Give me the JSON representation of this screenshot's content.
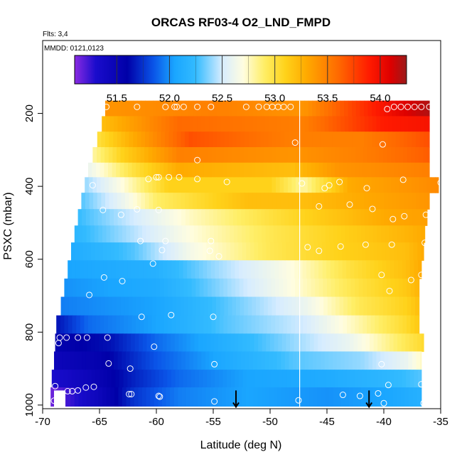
{
  "chart_data": {
    "type": "heatmap",
    "title": "ORCAS RF03-4 O2_LND_FMPD",
    "annotations": {
      "flights": "Flts: 3,4",
      "dates": "MMDD: 0121,0123"
    },
    "xlabel": "Latitude (deg N)",
    "ylabel": "PSXC (mbar)",
    "xlim": [
      -70,
      -35
    ],
    "ylim": [
      1010,
      0
    ],
    "x_ticks": [
      -70,
      -65,
      -60,
      -55,
      -50,
      -45,
      -40,
      -35
    ],
    "x_tick_labels": [
      "-70",
      "-65",
      "-60",
      "-55",
      "-50",
      "-45",
      "-40",
      "-35"
    ],
    "y_ticks": [
      200,
      400,
      600,
      800,
      1000
    ],
    "y_tick_labels": [
      "200",
      "400",
      "600",
      "800",
      "1000"
    ],
    "colorbar": {
      "range": [
        51.1,
        54.25
      ],
      "ticks": [
        51.5,
        52.0,
        52.5,
        53.0,
        53.5,
        54.0
      ],
      "tick_labels": [
        "51.5",
        "52.0",
        "52.5",
        "53.0",
        "53.5",
        "54.0"
      ],
      "stops": [
        {
          "v": 51.1,
          "c": "#8a2be2"
        },
        {
          "v": 51.3,
          "c": "#1a0ccc"
        },
        {
          "v": 51.6,
          "c": "#0000a8"
        },
        {
          "v": 51.85,
          "c": "#0a55e8"
        },
        {
          "v": 52.05,
          "c": "#1aa6ff"
        },
        {
          "v": 52.25,
          "c": "#33bbff"
        },
        {
          "v": 52.5,
          "c": "#d6ecff"
        },
        {
          "v": 52.7,
          "c": "#fffde0"
        },
        {
          "v": 52.9,
          "c": "#ffee66"
        },
        {
          "v": 53.1,
          "c": "#ffd21a"
        },
        {
          "v": 53.3,
          "c": "#ffaa00"
        },
        {
          "v": 53.6,
          "c": "#ff6a00"
        },
        {
          "v": 53.9,
          "c": "#ff1a00"
        },
        {
          "v": 54.1,
          "c": "#dd0000"
        },
        {
          "v": 54.25,
          "c": "#9a1a1a"
        }
      ]
    },
    "rows": [
      {
        "p": 185,
        "lat_start": -64.5,
        "lat_end": -36.0,
        "anchors": [
          [
            -64.5,
            53.4
          ],
          [
            -55,
            53.5
          ],
          [
            -47,
            53.4
          ],
          [
            -42,
            53.8
          ],
          [
            -38,
            54.1
          ],
          [
            -36,
            54.2
          ]
        ]
      },
      {
        "p": 230,
        "lat_start": -64.8,
        "lat_end": -36.0,
        "anchors": [
          [
            -64.8,
            53.2
          ],
          [
            -58,
            53.6
          ],
          [
            -47,
            53.5
          ],
          [
            -40,
            53.9
          ],
          [
            -36,
            53.95
          ]
        ]
      },
      {
        "p": 270,
        "lat_start": -65.2,
        "lat_end": -36.0,
        "anchors": [
          [
            -65.2,
            53.0
          ],
          [
            -62,
            53.3
          ],
          [
            -57,
            53.7
          ],
          [
            -48,
            53.5
          ],
          [
            -42,
            53.5
          ],
          [
            -36,
            53.7
          ]
        ]
      },
      {
        "p": 315,
        "lat_start": -65.6,
        "lat_end": -36.0,
        "anchors": [
          [
            -65.6,
            52.8
          ],
          [
            -63,
            53.1
          ],
          [
            -58,
            53.5
          ],
          [
            -48,
            53.4
          ],
          [
            -42,
            53.5
          ],
          [
            -36,
            53.65
          ]
        ]
      },
      {
        "p": 355,
        "lat_start": -66.0,
        "lat_end": -36.0,
        "anchors": [
          [
            -66.0,
            52.6
          ],
          [
            -62,
            53.0
          ],
          [
            -58,
            53.3
          ],
          [
            -48,
            53.2
          ],
          [
            -44,
            53.4
          ],
          [
            -36,
            53.5
          ]
        ]
      },
      {
        "p": 395,
        "lat_start": -66.3,
        "lat_end": -35.2,
        "anchors": [
          [
            -66.3,
            52.4
          ],
          [
            -63,
            52.7
          ],
          [
            -59,
            53.1
          ],
          [
            -50,
            53.1
          ],
          [
            -47,
            52.8
          ],
          [
            -43,
            53.3
          ],
          [
            -35.2,
            53.45
          ]
        ]
      },
      {
        "p": 440,
        "lat_start": -66.6,
        "lat_end": -36.0,
        "anchors": [
          [
            -66.6,
            52.3
          ],
          [
            -63,
            52.6
          ],
          [
            -60,
            52.9
          ],
          [
            -52,
            53.2
          ],
          [
            -47,
            53.2
          ],
          [
            -42,
            53.3
          ],
          [
            -36,
            53.4
          ]
        ]
      },
      {
        "p": 485,
        "lat_start": -66.9,
        "lat_end": -36.2,
        "anchors": [
          [
            -66.9,
            52.25
          ],
          [
            -62,
            52.5
          ],
          [
            -57,
            52.75
          ],
          [
            -50,
            53.0
          ],
          [
            -45,
            53.15
          ],
          [
            -40,
            53.3
          ],
          [
            -36.2,
            53.35
          ]
        ]
      },
      {
        "p": 530,
        "lat_start": -67.2,
        "lat_end": -36.4,
        "anchors": [
          [
            -67.2,
            52.2
          ],
          [
            -62,
            52.45
          ],
          [
            -57,
            52.7
          ],
          [
            -50,
            52.95
          ],
          [
            -44,
            53.1
          ],
          [
            -38,
            53.25
          ],
          [
            -36.4,
            53.3
          ]
        ]
      },
      {
        "p": 578,
        "lat_start": -67.5,
        "lat_end": -36.5,
        "anchors": [
          [
            -67.5,
            52.1
          ],
          [
            -62,
            52.3
          ],
          [
            -57,
            52.65
          ],
          [
            -50,
            52.95
          ],
          [
            -44,
            53.1
          ],
          [
            -38,
            53.2
          ],
          [
            -36.5,
            53.3
          ]
        ]
      },
      {
        "p": 628,
        "lat_start": -67.8,
        "lat_end": -36.7,
        "anchors": [
          [
            -67.8,
            52.05
          ],
          [
            -60,
            52.15
          ],
          [
            -55,
            52.4
          ],
          [
            -48,
            52.7
          ],
          [
            -43,
            53.0
          ],
          [
            -38,
            53.2
          ],
          [
            -36.7,
            53.3
          ]
        ]
      },
      {
        "p": 678,
        "lat_start": -68.1,
        "lat_end": -36.9,
        "anchors": [
          [
            -68.1,
            52.0
          ],
          [
            -60,
            52.1
          ],
          [
            -54,
            52.4
          ],
          [
            -47,
            52.75
          ],
          [
            -42,
            53.0
          ],
          [
            -38,
            53.15
          ],
          [
            -36.9,
            53.25
          ]
        ]
      },
      {
        "p": 728,
        "lat_start": -68.4,
        "lat_end": -36.9,
        "anchors": [
          [
            -68.4,
            51.95
          ],
          [
            -60,
            52.05
          ],
          [
            -54,
            52.3
          ],
          [
            -47,
            52.6
          ],
          [
            -42,
            52.95
          ],
          [
            -38,
            53.1
          ],
          [
            -36.9,
            53.2
          ]
        ]
      },
      {
        "p": 780,
        "lat_start": -68.8,
        "lat_end": -36.9,
        "anchors": [
          [
            -68.8,
            51.65
          ],
          [
            -66,
            51.9
          ],
          [
            -60,
            52.05
          ],
          [
            -54,
            52.3
          ],
          [
            -47,
            52.5
          ],
          [
            -42,
            52.8
          ],
          [
            -38,
            53.05
          ],
          [
            -36.9,
            53.15
          ]
        ]
      },
      {
        "p": 828,
        "lat_start": -68.9,
        "lat_end": -36.5,
        "anchors": [
          [
            -68.9,
            51.55
          ],
          [
            -64,
            51.65
          ],
          [
            -60,
            51.9
          ],
          [
            -55,
            52.1
          ],
          [
            -48,
            52.4
          ],
          [
            -43,
            52.6
          ],
          [
            -38,
            52.95
          ],
          [
            -36.5,
            53.05
          ]
        ]
      },
      {
        "p": 878,
        "lat_start": -69.0,
        "lat_end": -36.7,
        "anchors": [
          [
            -69.0,
            51.45
          ],
          [
            -65,
            51.55
          ],
          [
            -60,
            51.85
          ],
          [
            -55,
            52.05
          ],
          [
            -48,
            52.3
          ],
          [
            -42,
            52.4
          ],
          [
            -38,
            52.6
          ],
          [
            -36.7,
            52.75
          ]
        ]
      },
      {
        "p": 928,
        "lat_start": -69.2,
        "lat_end": -36.7,
        "anchors": [
          [
            -69.2,
            51.3
          ],
          [
            -66,
            51.45
          ],
          [
            -62,
            51.7
          ],
          [
            -58,
            51.9
          ],
          [
            -52,
            52.05
          ],
          [
            -45,
            52.1
          ],
          [
            -40,
            52.2
          ],
          [
            -36.7,
            52.3
          ]
        ]
      },
      {
        "p": 975,
        "lat_start": -69.3,
        "lat_end": -36.7,
        "anchors": [
          [
            -69.3,
            51.15
          ],
          [
            -67.5,
            51.25
          ],
          [
            -65,
            51.45
          ],
          [
            -62,
            51.75
          ],
          [
            -58,
            51.95
          ],
          [
            -52,
            52.05
          ],
          [
            -45,
            52.0
          ],
          [
            -40,
            52.05
          ],
          [
            -36.7,
            52.15
          ]
        ]
      }
    ],
    "white_gap": {
      "lat_start": -69.0,
      "lat_end": -68.0,
      "p_start": 960,
      "p_end": 1005
    },
    "vertical_line_lat": -47.4,
    "observations": [
      {
        "lat": -64.4,
        "p": 182
      },
      {
        "lat": -61.7,
        "p": 182
      },
      {
        "lat": -59.2,
        "p": 182
      },
      {
        "lat": -58.4,
        "p": 182
      },
      {
        "lat": -58.2,
        "p": 182
      },
      {
        "lat": -57.6,
        "p": 182
      },
      {
        "lat": -56.4,
        "p": 182
      },
      {
        "lat": -55.2,
        "p": 182
      },
      {
        "lat": -52.1,
        "p": 182
      },
      {
        "lat": -51.0,
        "p": 182
      },
      {
        "lat": -50.3,
        "p": 182
      },
      {
        "lat": -49.8,
        "p": 182
      },
      {
        "lat": -49.3,
        "p": 182
      },
      {
        "lat": -48.8,
        "p": 182
      },
      {
        "lat": -48.2,
        "p": 182
      },
      {
        "lat": -39.1,
        "p": 182
      },
      {
        "lat": -39.7,
        "p": 188
      },
      {
        "lat": -38.5,
        "p": 182
      },
      {
        "lat": -37.9,
        "p": 182
      },
      {
        "lat": -37.3,
        "p": 182
      },
      {
        "lat": -36.7,
        "p": 182
      },
      {
        "lat": -36.0,
        "p": 182
      },
      {
        "lat": -47.8,
        "p": 280
      },
      {
        "lat": -40.1,
        "p": 285
      },
      {
        "lat": -56.4,
        "p": 328
      },
      {
        "lat": -60.7,
        "p": 380
      },
      {
        "lat": -60.0,
        "p": 375
      },
      {
        "lat": -59.8,
        "p": 375
      },
      {
        "lat": -58.9,
        "p": 375
      },
      {
        "lat": -58.0,
        "p": 375
      },
      {
        "lat": -56.4,
        "p": 380
      },
      {
        "lat": -53.8,
        "p": 388
      },
      {
        "lat": -47.2,
        "p": 392
      },
      {
        "lat": -44.8,
        "p": 397
      },
      {
        "lat": -45.2,
        "p": 405
      },
      {
        "lat": -43.9,
        "p": 388
      },
      {
        "lat": -41.5,
        "p": 405
      },
      {
        "lat": -38.3,
        "p": 382
      },
      {
        "lat": -35.0,
        "p": 390
      },
      {
        "lat": -65.6,
        "p": 397
      },
      {
        "lat": -64.7,
        "p": 465
      },
      {
        "lat": -61.7,
        "p": 463
      },
      {
        "lat": -59.8,
        "p": 465
      },
      {
        "lat": -45.7,
        "p": 455
      },
      {
        "lat": -43.0,
        "p": 450
      },
      {
        "lat": -41.0,
        "p": 462
      },
      {
        "lat": -39.2,
        "p": 490
      },
      {
        "lat": -38.2,
        "p": 482
      },
      {
        "lat": -36.3,
        "p": 478
      },
      {
        "lat": -63.1,
        "p": 478
      },
      {
        "lat": -61.4,
        "p": 550
      },
      {
        "lat": -59.2,
        "p": 550
      },
      {
        "lat": -55.2,
        "p": 550
      },
      {
        "lat": -54.5,
        "p": 592
      },
      {
        "lat": -46.7,
        "p": 567
      },
      {
        "lat": -43.8,
        "p": 565
      },
      {
        "lat": -41.6,
        "p": 560
      },
      {
        "lat": -39.3,
        "p": 560
      },
      {
        "lat": -36.4,
        "p": 555
      },
      {
        "lat": -45.7,
        "p": 577
      },
      {
        "lat": -59.5,
        "p": 575
      },
      {
        "lat": -55.3,
        "p": 577
      },
      {
        "lat": -60.3,
        "p": 612
      },
      {
        "lat": -64.6,
        "p": 650
      },
      {
        "lat": -63.0,
        "p": 660
      },
      {
        "lat": -40.2,
        "p": 643
      },
      {
        "lat": -37.6,
        "p": 657
      },
      {
        "lat": -36.7,
        "p": 643
      },
      {
        "lat": -39.5,
        "p": 687
      },
      {
        "lat": -65.9,
        "p": 698
      },
      {
        "lat": -68.7,
        "p": 738
      },
      {
        "lat": -61.3,
        "p": 758
      },
      {
        "lat": -58.7,
        "p": 753
      },
      {
        "lat": -55.0,
        "p": 758
      },
      {
        "lat": -36.3,
        "p": 766
      },
      {
        "lat": -68.5,
        "p": 815
      },
      {
        "lat": -67.9,
        "p": 815
      },
      {
        "lat": -66.9,
        "p": 815
      },
      {
        "lat": -66.1,
        "p": 815
      },
      {
        "lat": -64.3,
        "p": 815
      },
      {
        "lat": -68.6,
        "p": 830
      },
      {
        "lat": -60.2,
        "p": 840
      },
      {
        "lat": -64.2,
        "p": 886
      },
      {
        "lat": -62.3,
        "p": 900
      },
      {
        "lat": -54.9,
        "p": 888
      },
      {
        "lat": -40.2,
        "p": 888
      },
      {
        "lat": -68.9,
        "p": 948
      },
      {
        "lat": -67.8,
        "p": 962
      },
      {
        "lat": -67.4,
        "p": 962
      },
      {
        "lat": -66.9,
        "p": 960
      },
      {
        "lat": -66.2,
        "p": 952
      },
      {
        "lat": -65.5,
        "p": 950
      },
      {
        "lat": -62.4,
        "p": 970
      },
      {
        "lat": -62.2,
        "p": 970
      },
      {
        "lat": -59.8,
        "p": 975
      },
      {
        "lat": -59.7,
        "p": 977
      },
      {
        "lat": -54.9,
        "p": 990
      },
      {
        "lat": -47.5,
        "p": 987
      },
      {
        "lat": -43.6,
        "p": 972
      },
      {
        "lat": -42.1,
        "p": 975
      },
      {
        "lat": -40.5,
        "p": 968
      },
      {
        "lat": -39.6,
        "p": 945
      },
      {
        "lat": -36.7,
        "p": 943
      },
      {
        "lat": -40.0,
        "p": 995
      },
      {
        "lat": -36.5,
        "p": 995
      },
      {
        "lat": -69.0,
        "p": 988
      },
      {
        "lat": -68.5,
        "p": 975
      }
    ],
    "arrows": [
      {
        "lat": -53.0,
        "p_from": 960,
        "p_to": 1005
      },
      {
        "lat": -41.3,
        "p_from": 960,
        "p_to": 1005
      }
    ]
  }
}
